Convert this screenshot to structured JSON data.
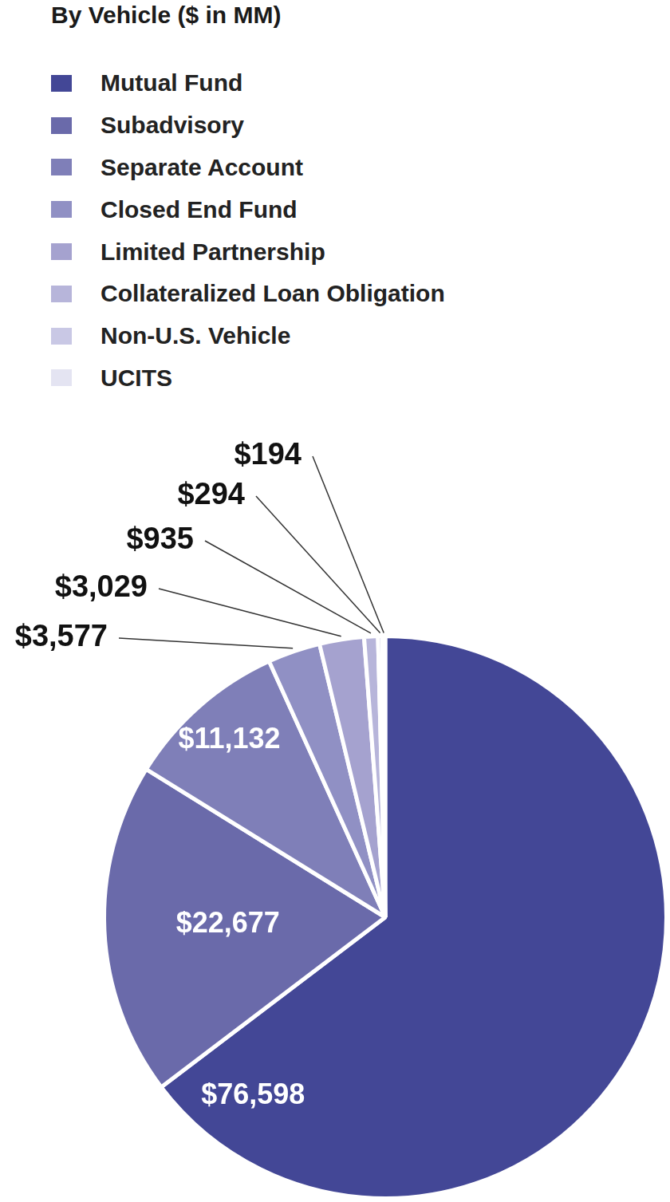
{
  "chart_data": {
    "type": "pie",
    "title": "By Vehicle ($ in MM)",
    "categories": [
      "Mutual Fund",
      "Subadvisory",
      "Separate Account",
      "Closed End Fund",
      "Limited Partnership",
      "Collateralized Loan Obligation",
      "Non-U.S. Vehicle",
      "UCITS"
    ],
    "values": [
      76598,
      22677,
      11132,
      3577,
      3029,
      935,
      294,
      194
    ],
    "value_labels": [
      "$76,598",
      "$22,677",
      "$11,132",
      "$3,577",
      "$3,029",
      "$935",
      "$294",
      "$194"
    ],
    "colors": [
      "#434796",
      "#6a6aaa",
      "#7f7fb8",
      "#9090c4",
      "#a5a2cf",
      "#b7b5da",
      "#c9c8e5",
      "#e4e4f2"
    ],
    "legend": "top-left",
    "data_labels": true
  }
}
